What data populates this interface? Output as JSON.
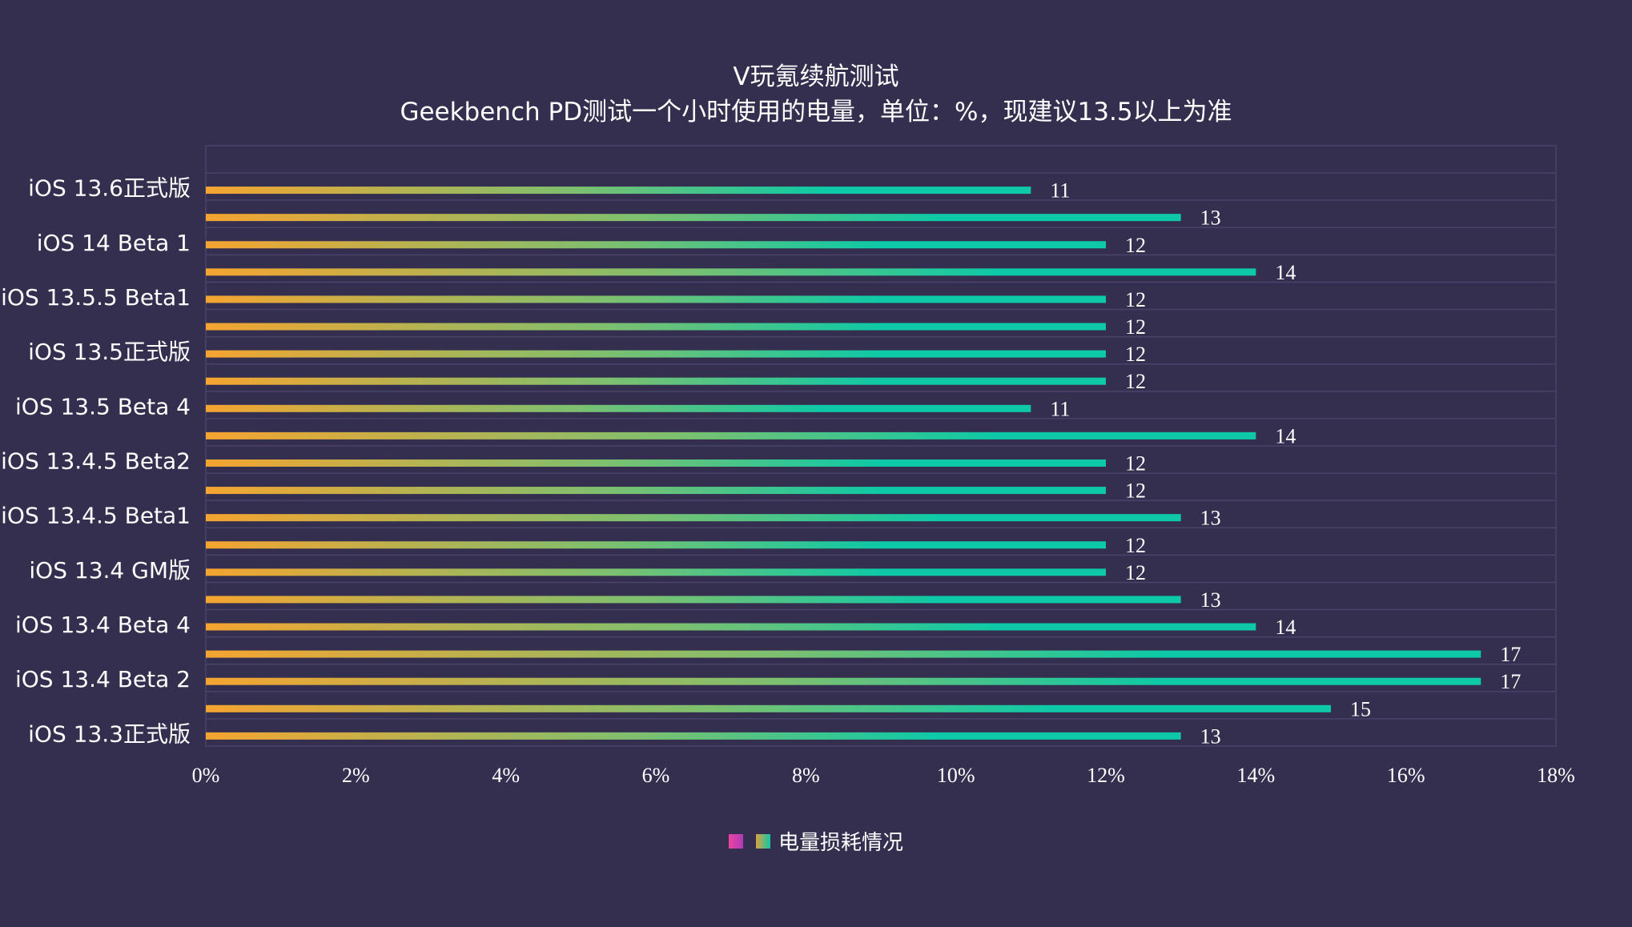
{
  "chart_data": {
    "type": "bar",
    "orientation": "horizontal",
    "title": "V玩氪续航测试",
    "subtitle": "Geekbench PD测试一个小时使用的电量，单位：%，现建议13.5以上为准",
    "categories": [
      "iOS 13.6正式版",
      "",
      "iOS 14 Beta 1",
      "",
      "iOS 13.5.5 Beta1",
      "",
      "iOS 13.5正式版",
      "",
      "iOS 13.5 Beta 4",
      "",
      "iOS 13.4.5 Beta2",
      "",
      "iOS 13.4.5 Beta1",
      "",
      "iOS 13.4 GM版",
      "",
      "iOS 13.4 Beta 4",
      "",
      "iOS 13.4 Beta 2",
      "",
      "iOS 13.3正式版"
    ],
    "series": [
      {
        "name": "电量损耗情况",
        "values": [
          11,
          13,
          12,
          14,
          12,
          12,
          12,
          12,
          11,
          14,
          12,
          12,
          13,
          12,
          12,
          13,
          14,
          17,
          17,
          15,
          13
        ]
      }
    ],
    "xlim": [
      0,
      18
    ],
    "xticks": [
      "0%",
      "2%",
      "4%",
      "6%",
      "8%",
      "10%",
      "12%",
      "14%",
      "16%",
      "18%"
    ],
    "grid": true,
    "legend_placement": "bottom",
    "legend_swatches": [
      "#e83fa0",
      "#10c8a8"
    ],
    "colors": {
      "bar_start": "#f5a430",
      "bar_end": "#0ec9a6",
      "background": "#342f4f",
      "grid": "#48446a"
    }
  }
}
